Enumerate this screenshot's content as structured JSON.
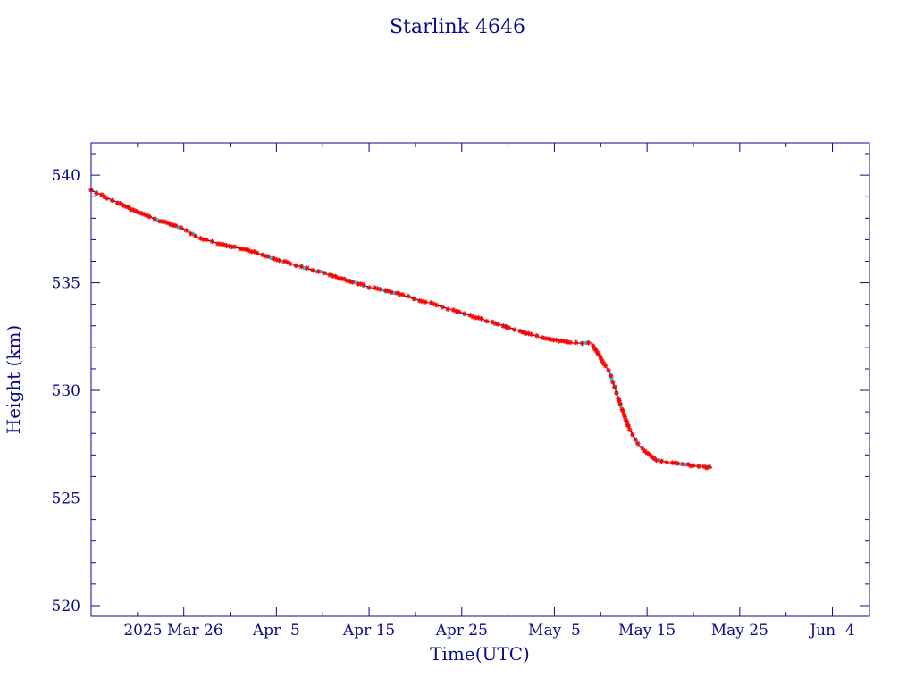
{
  "chart_data": {
    "type": "line",
    "title": "Starlink 4646",
    "xlabel": "Time(UTC)",
    "ylabel": "Height (km)",
    "x_unit": "date",
    "xlim": [
      "2025-03-16T00:00",
      "2025-06-08T00:00"
    ],
    "ylim": [
      519.5,
      541.5
    ],
    "x_tick_labels": [
      {
        "date": "2025-03-26",
        "label": "2025 Mar 26"
      },
      {
        "date": "2025-04-05",
        "label": "Apr  5"
      },
      {
        "date": "2025-04-15",
        "label": "Apr 15"
      },
      {
        "date": "2025-04-25",
        "label": "Apr 25"
      },
      {
        "date": "2025-05-05",
        "label": "May  5"
      },
      {
        "date": "2025-05-15",
        "label": "May 15"
      },
      {
        "date": "2025-05-25",
        "label": "May 25"
      },
      {
        "date": "2025-06-04",
        "label": "Jun  4"
      }
    ],
    "y_tick_labels": [
      {
        "value": 520,
        "label": "520"
      },
      {
        "value": 525,
        "label": "525"
      },
      {
        "value": 530,
        "label": "530"
      },
      {
        "value": 535,
        "label": "535"
      },
      {
        "value": 540,
        "label": "540"
      }
    ],
    "series": [
      {
        "color": "#000000",
        "marker_color": "#ff0000",
        "alt_marker_color": "#00e0ff",
        "points": [
          [
            "2025-03-16T00:00",
            539.3
          ],
          [
            "2025-03-18T00:00",
            538.9
          ],
          [
            "2025-03-20T00:00",
            538.5
          ],
          [
            "2025-03-22T00:00",
            538.1
          ],
          [
            "2025-03-24T00:00",
            537.8
          ],
          [
            "2025-03-26T00:00",
            537.5
          ],
          [
            "2025-03-27T12:00",
            537.1
          ],
          [
            "2025-03-30T00:00",
            536.8
          ],
          [
            "2025-04-02T00:00",
            536.5
          ],
          [
            "2025-04-05T00:00",
            536.1
          ],
          [
            "2025-04-08T00:00",
            535.7
          ],
          [
            "2025-04-12T00:00",
            535.2
          ],
          [
            "2025-04-15T00:00",
            534.8
          ],
          [
            "2025-04-18T00:00",
            534.5
          ],
          [
            "2025-04-22T00:00",
            534.0
          ],
          [
            "2025-04-25T00:00",
            533.6
          ],
          [
            "2025-04-28T00:00",
            533.2
          ],
          [
            "2025-05-01T00:00",
            532.8
          ],
          [
            "2025-05-04T00:00",
            532.4
          ],
          [
            "2025-05-07T00:00",
            532.2
          ],
          [
            "2025-05-09T00:00",
            532.2
          ],
          [
            "2025-05-10T00:00",
            531.5
          ],
          [
            "2025-05-11T00:00",
            530.8
          ],
          [
            "2025-05-12T00:00",
            529.5
          ],
          [
            "2025-05-13T00:00",
            528.3
          ],
          [
            "2025-05-14T00:00",
            527.5
          ],
          [
            "2025-05-15T00:00",
            527.1
          ],
          [
            "2025-05-16T00:00",
            526.75
          ],
          [
            "2025-05-18T00:00",
            526.6
          ],
          [
            "2025-05-20T00:00",
            526.5
          ],
          [
            "2025-05-22T00:00",
            526.4
          ]
        ]
      }
    ]
  }
}
